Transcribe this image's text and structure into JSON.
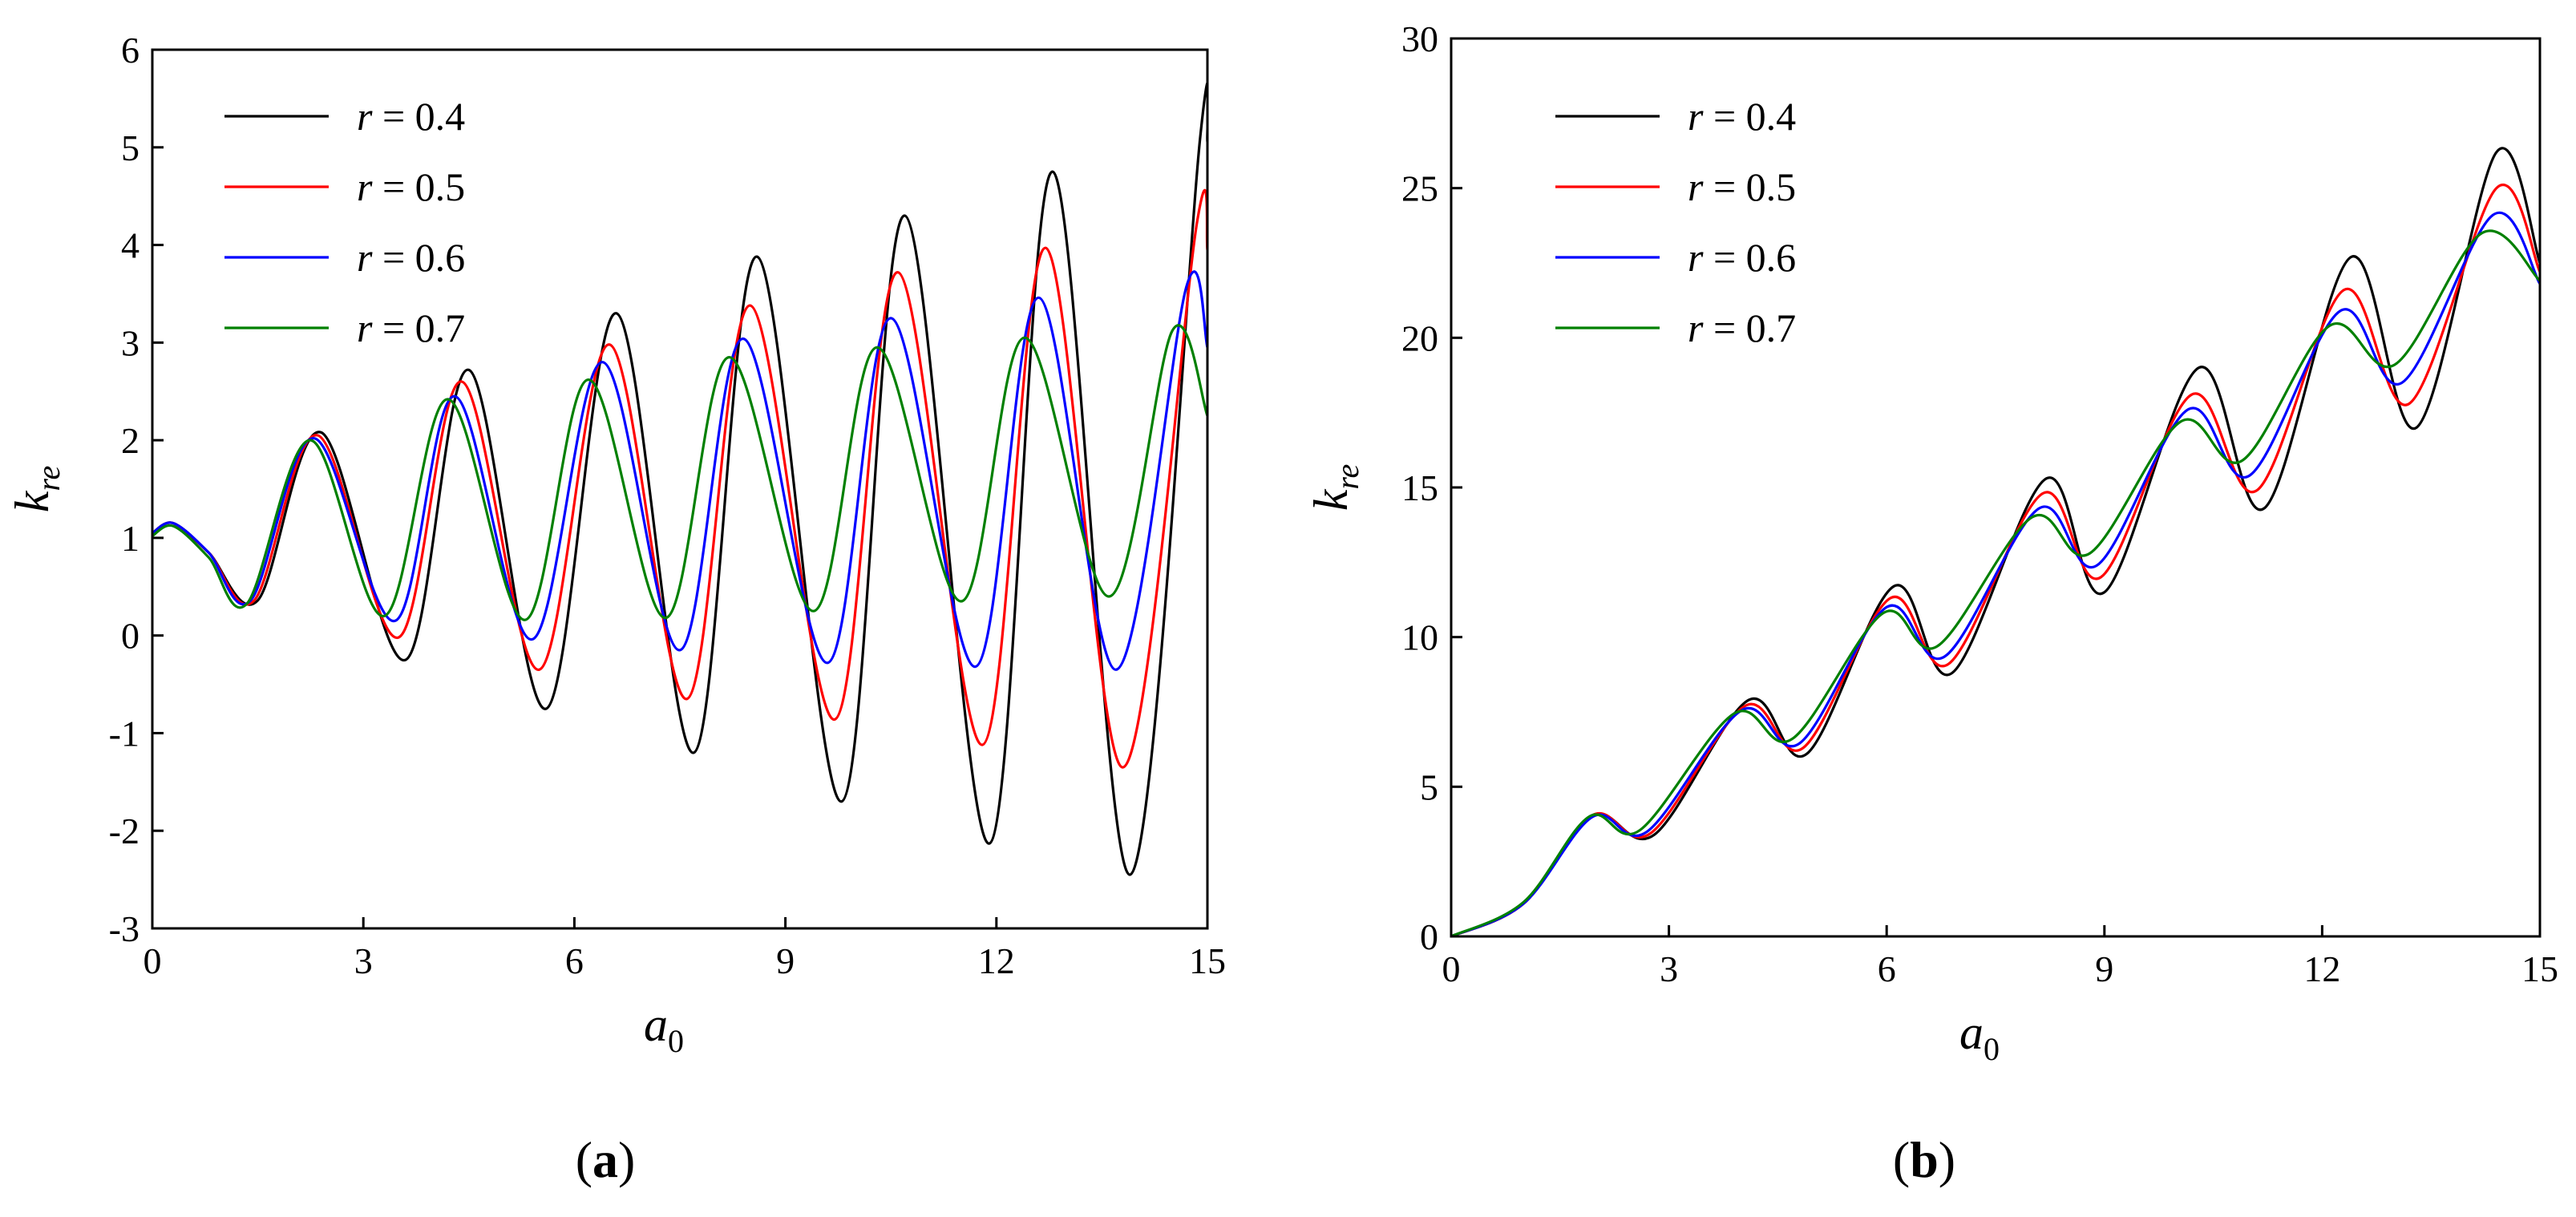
{
  "chart_data": [
    {
      "panel_label": "(a)",
      "panel_letter": "a",
      "type": "line",
      "xlabel": "a0",
      "ylabel": "kre",
      "xlim": [
        0,
        15
      ],
      "ylim": [
        -3,
        6
      ],
      "xticks": [
        "0",
        "3",
        "6",
        "9",
        "12",
        "15"
      ],
      "yticks": [
        "6",
        "5",
        "4",
        "3",
        "2",
        "1",
        "0",
        "-1",
        "-2",
        "-3"
      ],
      "legend_position": "top-left",
      "grid": false,
      "series": [
        {
          "name": "r = 0.4",
          "color": "#000000",
          "points": [
            [
              0,
              1.05
            ],
            [
              0.3,
              1.15
            ],
            [
              0.8,
              0.85
            ],
            [
              1.5,
              0.36
            ],
            [
              2.4,
              2.08
            ],
            [
              3.6,
              -0.25
            ],
            [
              4.5,
              2.72
            ],
            [
              5.6,
              -0.75
            ],
            [
              6.6,
              3.3
            ],
            [
              7.7,
              -1.2
            ],
            [
              8.6,
              3.88
            ],
            [
              9.8,
              -1.7
            ],
            [
              10.7,
              4.3
            ],
            [
              11.9,
              -2.13
            ],
            [
              12.8,
              4.75
            ],
            [
              13.9,
              -2.45
            ],
            [
              14.9,
              5.12
            ],
            [
              15,
              5.05
            ]
          ]
        },
        {
          "name": "r = 0.5",
          "color": "#ff0000",
          "points": [
            [
              0,
              1.05
            ],
            [
              0.3,
              1.15
            ],
            [
              0.8,
              0.85
            ],
            [
              1.45,
              0.36
            ],
            [
              2.35,
              2.05
            ],
            [
              3.5,
              -0.02
            ],
            [
              4.4,
              2.6
            ],
            [
              5.5,
              -0.35
            ],
            [
              6.5,
              2.98
            ],
            [
              7.6,
              -0.65
            ],
            [
              8.5,
              3.38
            ],
            [
              9.7,
              -0.86
            ],
            [
              10.6,
              3.72
            ],
            [
              11.8,
              -1.12
            ],
            [
              12.7,
              3.97
            ],
            [
              13.8,
              -1.35
            ],
            [
              14.85,
              4.22
            ],
            [
              15,
              3.95
            ]
          ]
        },
        {
          "name": "r = 0.6",
          "color": "#0000ff",
          "points": [
            [
              0,
              1.05
            ],
            [
              0.3,
              1.15
            ],
            [
              0.8,
              0.85
            ],
            [
              1.4,
              0.36
            ],
            [
              2.3,
              2.02
            ],
            [
              3.45,
              0.15
            ],
            [
              4.3,
              2.45
            ],
            [
              5.4,
              -0.04
            ],
            [
              6.4,
              2.8
            ],
            [
              7.5,
              -0.15
            ],
            [
              8.4,
              3.04
            ],
            [
              9.6,
              -0.28
            ],
            [
              10.5,
              3.25
            ],
            [
              11.7,
              -0.32
            ],
            [
              12.6,
              3.46
            ],
            [
              13.7,
              -0.35
            ],
            [
              14.7,
              3.57
            ],
            [
              15,
              2.95
            ]
          ]
        },
        {
          "name": "r = 0.7",
          "color": "#008000",
          "points": [
            [
              0,
              1.02
            ],
            [
              0.3,
              1.12
            ],
            [
              0.8,
              0.8
            ],
            [
              1.35,
              0.33
            ],
            [
              2.25,
              2.0
            ],
            [
              3.3,
              0.2
            ],
            [
              4.2,
              2.42
            ],
            [
              5.3,
              0.16
            ],
            [
              6.2,
              2.62
            ],
            [
              7.3,
              0.18
            ],
            [
              8.2,
              2.85
            ],
            [
              9.4,
              0.25
            ],
            [
              10.3,
              2.95
            ],
            [
              11.5,
              0.35
            ],
            [
              12.4,
              3.05
            ],
            [
              13.6,
              0.4
            ],
            [
              14.5,
              3.12
            ],
            [
              15,
              2.25
            ]
          ]
        }
      ]
    },
    {
      "panel_label": "(b)",
      "panel_letter": "b",
      "type": "line",
      "xlabel": "a0",
      "ylabel": "kre",
      "xlim": [
        0,
        15
      ],
      "ylim": [
        0,
        30
      ],
      "xticks": [
        "0",
        "3",
        "6",
        "9",
        "12",
        "15"
      ],
      "yticks": [
        "30",
        "25",
        "20",
        "15",
        "10",
        "5",
        "0"
      ],
      "legend_position": "top-left",
      "grid": false,
      "series": [
        {
          "name": "r = 0.4",
          "color": "#000000",
          "points": [
            [
              0,
              0
            ],
            [
              1,
              1.1
            ],
            [
              1.95,
              4.05
            ],
            [
              2.8,
              3.4
            ],
            [
              4.1,
              7.9
            ],
            [
              4.9,
              6.1
            ],
            [
              6.1,
              11.7
            ],
            [
              6.9,
              8.8
            ],
            [
              8.2,
              15.3
            ],
            [
              9.0,
              11.5
            ],
            [
              10.3,
              19.0
            ],
            [
              11.2,
              14.3
            ],
            [
              12.4,
              22.7
            ],
            [
              13.3,
              17.0
            ],
            [
              14.4,
              26.2
            ],
            [
              15,
              22.5
            ]
          ]
        },
        {
          "name": "r = 0.5",
          "color": "#ff0000",
          "points": [
            [
              0,
              0
            ],
            [
              1,
              1.1
            ],
            [
              1.95,
              4.05
            ],
            [
              2.75,
              3.45
            ],
            [
              4.05,
              7.7
            ],
            [
              4.85,
              6.3
            ],
            [
              6.05,
              11.3
            ],
            [
              6.85,
              9.1
            ],
            [
              8.15,
              14.8
            ],
            [
              8.95,
              12.0
            ],
            [
              10.2,
              18.1
            ],
            [
              11.1,
              14.9
            ],
            [
              12.3,
              21.6
            ],
            [
              13.2,
              17.8
            ],
            [
              14.4,
              25.0
            ],
            [
              15,
              22.2
            ]
          ]
        },
        {
          "name": "r = 0.6",
          "color": "#0000ff",
          "points": [
            [
              0,
              0
            ],
            [
              1,
              1.1
            ],
            [
              1.95,
              4.0
            ],
            [
              2.7,
              3.5
            ],
            [
              4.0,
              7.55
            ],
            [
              4.8,
              6.45
            ],
            [
              6.0,
              11.0
            ],
            [
              6.8,
              9.35
            ],
            [
              8.1,
              14.3
            ],
            [
              8.9,
              12.4
            ],
            [
              10.15,
              17.6
            ],
            [
              11.0,
              15.4
            ],
            [
              12.25,
              20.9
            ],
            [
              13.1,
              18.5
            ],
            [
              14.35,
              24.1
            ],
            [
              15,
              21.8
            ]
          ]
        },
        {
          "name": "r = 0.7",
          "color": "#008000",
          "points": [
            [
              0,
              0
            ],
            [
              1,
              1.15
            ],
            [
              1.9,
              4.0
            ],
            [
              2.6,
              3.55
            ],
            [
              3.9,
              7.45
            ],
            [
              4.7,
              6.6
            ],
            [
              5.95,
              10.8
            ],
            [
              6.7,
              9.7
            ],
            [
              8.0,
              14.0
            ],
            [
              8.8,
              12.8
            ],
            [
              10.05,
              17.2
            ],
            [
              10.9,
              15.9
            ],
            [
              12.1,
              20.4
            ],
            [
              13.0,
              19.1
            ],
            [
              14.2,
              23.5
            ],
            [
              15,
              21.9
            ]
          ]
        }
      ]
    }
  ]
}
